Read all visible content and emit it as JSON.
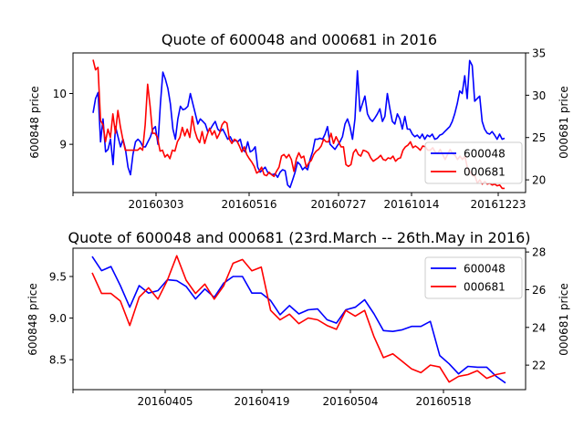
{
  "chart_data": [
    {
      "type": "line",
      "title": "Quote of 600048 and 000681 in 2016",
      "ylabel_left": "600848 price",
      "ylabel_right": "000681 price",
      "x_tick_labels": [
        "20160303",
        "20160516",
        "20160727",
        "20161014",
        "20161223"
      ],
      "ylim_left": [
        8.05,
        10.8
      ],
      "ylim_right": [
        18.5,
        35
      ],
      "yticks_left": [
        "9",
        "10"
      ],
      "yticks_right": [
        "20",
        "25",
        "30",
        "35"
      ],
      "legend": "bottom-right",
      "series": [
        {
          "name": "600048",
          "axis": "left",
          "color": "#0000ff",
          "values": [
            9.62,
            9.9,
            10.02,
            9.05,
            9.5,
            8.85,
            8.9,
            9.1,
            8.6,
            9.35,
            9.15,
            8.95,
            9.1,
            8.9,
            8.55,
            8.4,
            8.8,
            9.05,
            9.1,
            9.05,
            8.95,
            8.95,
            9.05,
            9.15,
            9.3,
            9.35,
            9.0,
            9.8,
            10.42,
            10.28,
            10.1,
            9.8,
            9.3,
            9.1,
            9.5,
            9.75,
            9.68,
            9.7,
            9.75,
            10.0,
            9.8,
            9.6,
            9.4,
            9.5,
            9.45,
            9.4,
            9.25,
            9.3,
            9.38,
            9.45,
            9.3,
            9.25,
            9.3,
            9.2,
            9.1,
            9.15,
            9.05,
            9.08,
            9.05,
            9.1,
            8.9,
            8.85,
            9.05,
            8.85,
            8.88,
            8.95,
            8.55,
            8.45,
            8.5,
            8.55,
            8.45,
            8.42,
            8.4,
            8.42,
            8.35,
            8.45,
            8.5,
            8.48,
            8.2,
            8.15,
            8.3,
            8.45,
            8.65,
            8.6,
            8.5,
            8.55,
            8.5,
            8.7,
            8.85,
            9.1,
            9.1,
            9.12,
            9.1,
            9.2,
            9.35,
            9.0,
            8.95,
            8.9,
            8.98,
            9.05,
            9.15,
            9.4,
            9.5,
            9.35,
            9.1,
            9.5,
            10.45,
            9.65,
            9.8,
            9.95,
            9.6,
            9.5,
            9.45,
            9.52,
            9.6,
            9.7,
            9.45,
            9.55,
            10.0,
            9.7,
            9.45,
            9.4,
            9.6,
            9.5,
            9.3,
            9.55,
            9.3,
            9.3,
            9.2,
            9.15,
            9.18,
            9.12,
            9.2,
            9.1,
            9.18,
            9.15,
            9.2,
            9.1,
            9.12,
            9.18,
            9.2,
            9.25,
            9.3,
            9.35,
            9.45,
            9.6,
            9.8,
            10.05,
            10.0,
            10.35,
            9.9,
            10.65,
            10.55,
            9.85,
            9.9,
            9.95,
            9.45,
            9.3,
            9.22,
            9.2,
            9.25,
            9.18,
            9.1,
            9.2,
            9.1,
            9.12
          ]
        },
        {
          "name": "000681",
          "axis": "right",
          "color": "#ff0000",
          "values": [
            34.2,
            33.0,
            33.3,
            27.0,
            26.5,
            24.5,
            26.0,
            25.0,
            27.8,
            25.5,
            28.2,
            26.3,
            24.8,
            23.5,
            23.5,
            23.5,
            23.5,
            23.5,
            23.5,
            23.8,
            23.5,
            26.5,
            31.3,
            28.7,
            25.5,
            25.5,
            25.0,
            23.4,
            23.5,
            22.7,
            23.0,
            22.5,
            23.5,
            23.4,
            24.5,
            25.0,
            26.2,
            25.2,
            26.0,
            25.0,
            27.5,
            25.8,
            24.9,
            24.4,
            25.7,
            24.3,
            25.3,
            26.1,
            25.3,
            25.8,
            24.9,
            25.5,
            26.5,
            26.9,
            26.7,
            24.8,
            24.3,
            24.8,
            24.6,
            24.0,
            23.3,
            23.9,
            23.0,
            22.5,
            22.1,
            21.6,
            20.8,
            21.0,
            21.5,
            20.6,
            20.5,
            20.9,
            20.6,
            20.4,
            21.0,
            21.5,
            22.8,
            23.0,
            22.6,
            23.0,
            22.4,
            21.0,
            22.5,
            23.2,
            22.6,
            22.8,
            21.5,
            22.0,
            22.3,
            23.0,
            23.4,
            23.6,
            24.0,
            24.8,
            24.5,
            24.5,
            25.5,
            24.3,
            25.1,
            24.5,
            23.9,
            23.9,
            21.8,
            21.6,
            21.8,
            23.2,
            23.6,
            23.0,
            22.8,
            23.5,
            23.4,
            23.2,
            22.6,
            22.2,
            22.4,
            22.6,
            22.9,
            22.4,
            22.3,
            22.6,
            22.5,
            22.8,
            22.2,
            22.5,
            22.6,
            23.5,
            23.9,
            24.1,
            24.5,
            23.8,
            24.0,
            23.8,
            23.5,
            24.0,
            23.9,
            23.5,
            23.5,
            23.8,
            23.3,
            23.1,
            23.6,
            23.0,
            22.4,
            23.0,
            23.6,
            23.1,
            22.9,
            22.4,
            22.8,
            22.4,
            22.8,
            21.4,
            21.0,
            20.5,
            20.5,
            19.6,
            20.0,
            19.5,
            19.8,
            19.5,
            19.6,
            19.4,
            19.5,
            19.3,
            19.4,
            19.0,
            19.0
          ]
        }
      ]
    },
    {
      "type": "line",
      "title": "Quote of 600048 and 000681 (23rd.March -- 26th.May in 2016)",
      "ylabel_left": "600848 price",
      "ylabel_right": "000681 price",
      "x_tick_labels": [
        "20160405",
        "20160419",
        "20160504",
        "20160518"
      ],
      "ylim_left": [
        8.14,
        9.84
      ],
      "ylim_right": [
        20.7,
        28.2
      ],
      "yticks_left": [
        "8.5",
        "9.0",
        "9.5"
      ],
      "yticks_right": [
        "22",
        "24",
        "26",
        "28"
      ],
      "legend": "top-right",
      "series": [
        {
          "name": "600048",
          "axis": "left",
          "color": "#0000ff",
          "values": [
            9.74,
            9.57,
            9.62,
            9.39,
            9.13,
            9.39,
            9.3,
            9.33,
            9.46,
            9.45,
            9.38,
            9.23,
            9.35,
            9.25,
            9.42,
            9.5,
            9.5,
            9.3,
            9.3,
            9.21,
            9.04,
            9.15,
            9.05,
            9.1,
            9.11,
            8.98,
            8.94,
            9.1,
            9.13,
            9.22,
            9.05,
            8.85,
            8.84,
            8.86,
            8.9,
            8.9,
            8.96,
            8.55,
            8.45,
            8.33,
            8.42,
            8.41,
            8.41,
            8.3,
            8.22
          ]
        },
        {
          "name": "000681",
          "axis": "right",
          "color": "#ff0000",
          "values": [
            26.9,
            25.8,
            25.8,
            25.4,
            24.1,
            25.6,
            26.1,
            25.5,
            26.5,
            27.8,
            26.5,
            25.8,
            26.3,
            25.5,
            26.2,
            27.4,
            27.6,
            27.0,
            27.2,
            24.9,
            24.4,
            24.7,
            24.2,
            24.5,
            24.4,
            24.1,
            23.9,
            24.9,
            24.6,
            24.9,
            23.5,
            22.4,
            22.6,
            22.2,
            21.8,
            21.6,
            22.0,
            21.9,
            21.1,
            21.4,
            21.5,
            21.7,
            21.3,
            21.5,
            21.6
          ]
        }
      ]
    }
  ]
}
